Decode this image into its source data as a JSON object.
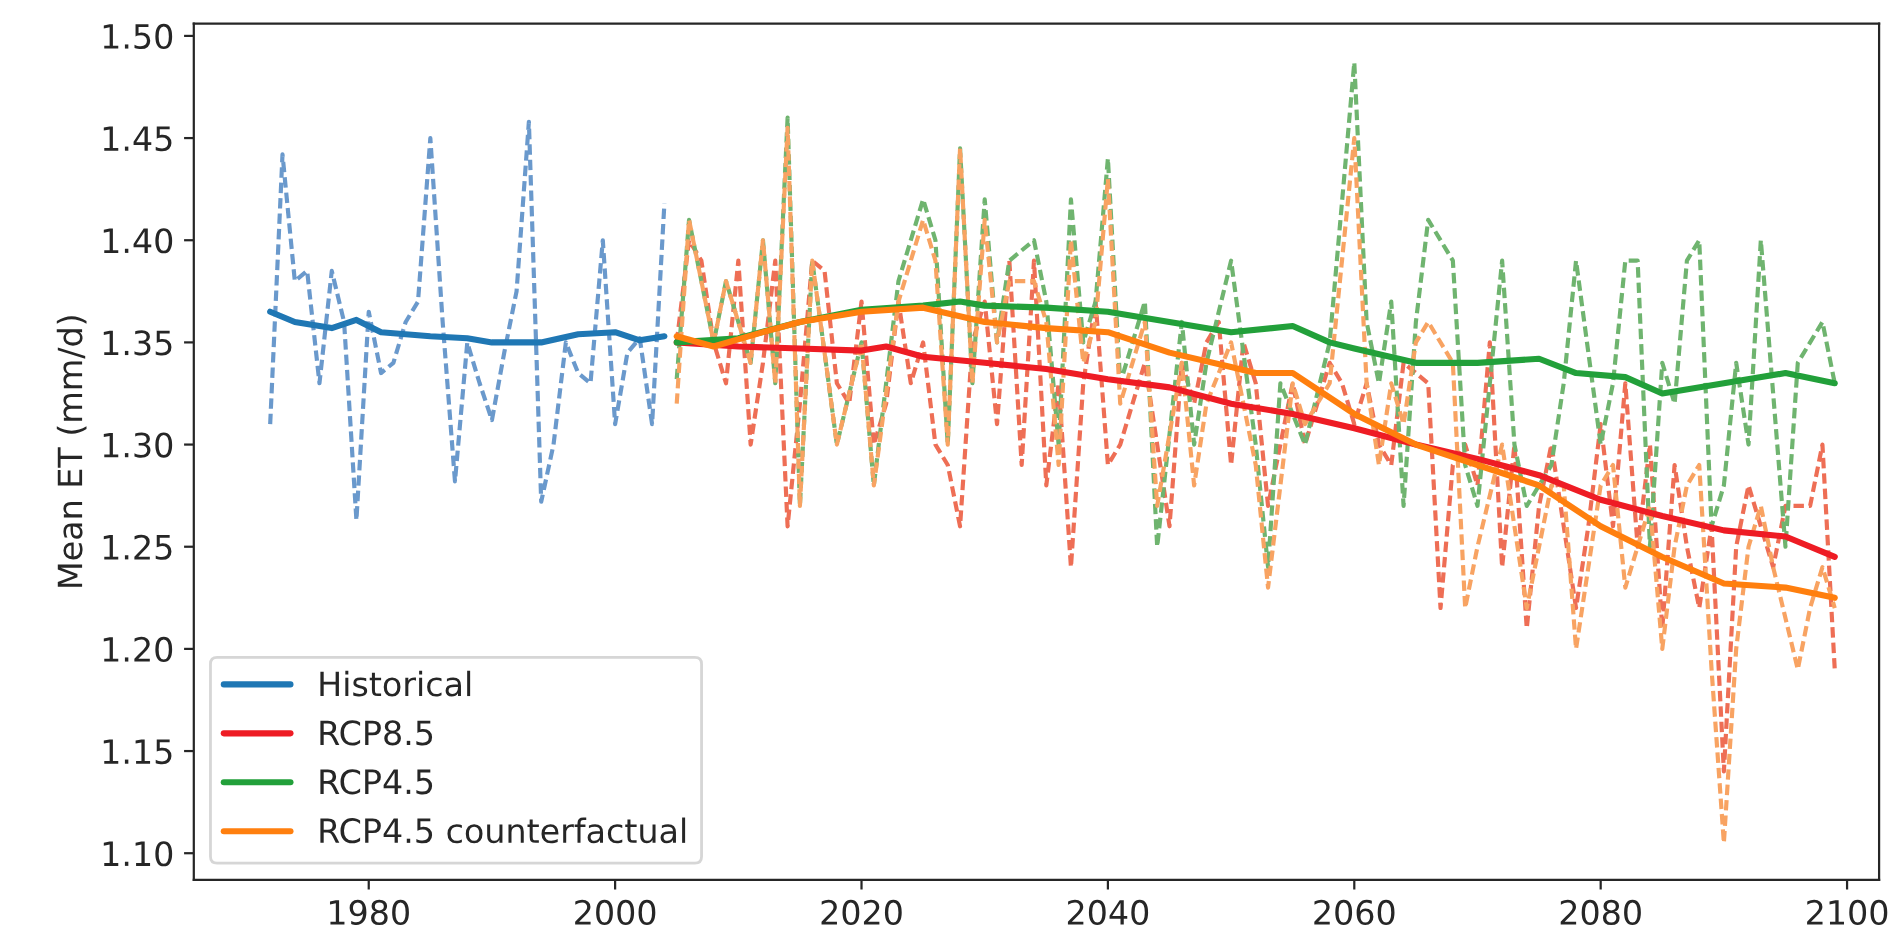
{
  "chart_data": {
    "type": "line",
    "ylabel": "Mean ET (mm/d)",
    "xlim": [
      1965.8,
      2102.6
    ],
    "ylim": [
      1.087,
      1.506
    ],
    "xticks": [
      1980,
      2000,
      2020,
      2040,
      2060,
      2080,
      2100
    ],
    "yticks": [
      {
        "value": 1.1,
        "label": "1.10"
      },
      {
        "value": 1.15,
        "label": "1.15"
      },
      {
        "value": 1.2,
        "label": "1.20"
      },
      {
        "value": 1.25,
        "label": "1.25"
      },
      {
        "value": 1.3,
        "label": "1.30"
      },
      {
        "value": 1.35,
        "label": "1.35"
      },
      {
        "value": 1.4,
        "label": "1.40"
      },
      {
        "value": 1.45,
        "label": "1.45"
      },
      {
        "value": 1.5,
        "label": "1.50"
      }
    ],
    "grid": false,
    "legend": "lower left",
    "series": [
      {
        "color": "#6a99cc",
        "line_style": "dashed",
        "x": [
          1972,
          1973,
          1974,
          1975,
          1976,
          1977,
          1978,
          1979,
          1980,
          1981,
          1982,
          1983,
          1984,
          1985,
          1986,
          1987,
          1988,
          1989,
          1990,
          1991,
          1992,
          1993,
          1994,
          1995,
          1996,
          1997,
          1998,
          1999,
          2000,
          2001,
          2002,
          2003,
          2004
        ],
        "values": [
          1.31,
          1.442,
          1.38,
          1.385,
          1.33,
          1.385,
          1.36,
          1.263,
          1.365,
          1.335,
          1.34,
          1.36,
          1.37,
          1.45,
          1.36,
          1.282,
          1.35,
          1.33,
          1.312,
          1.345,
          1.375,
          1.458,
          1.272,
          1.3,
          1.35,
          1.335,
          1.33,
          1.4,
          1.31,
          1.345,
          1.352,
          1.31,
          1.418
        ]
      },
      {
        "color": "#ee6e55",
        "line_style": "dashed",
        "x": [
          2005,
          2006,
          2007,
          2008,
          2009,
          2010,
          2011,
          2012,
          2013,
          2014,
          2015,
          2016,
          2017,
          2018,
          2019,
          2020,
          2021,
          2022,
          2023,
          2024,
          2025,
          2026,
          2027,
          2028,
          2029,
          2030,
          2031,
          2032,
          2033,
          2034,
          2035,
          2036,
          2037,
          2038,
          2039,
          2040,
          2041,
          2043,
          2044,
          2045,
          2046,
          2047,
          2048,
          2049,
          2050,
          2051,
          2052,
          2053,
          2055,
          2056,
          2057,
          2058,
          2059,
          2060,
          2061,
          2062,
          2063,
          2064,
          2066,
          2067,
          2068,
          2069,
          2070,
          2071,
          2072,
          2073,
          2074,
          2075,
          2076,
          2077,
          2078,
          2079,
          2080,
          2081,
          2082,
          2083,
          2084,
          2085,
          2086,
          2087,
          2088,
          2089,
          2090,
          2091,
          2092,
          2094,
          2095,
          2097,
          2098,
          2099
        ],
        "values": [
          1.35,
          1.4,
          1.39,
          1.35,
          1.33,
          1.39,
          1.3,
          1.34,
          1.39,
          1.26,
          1.32,
          1.39,
          1.385,
          1.33,
          1.32,
          1.37,
          1.3,
          1.32,
          1.37,
          1.33,
          1.35,
          1.3,
          1.29,
          1.26,
          1.35,
          1.37,
          1.31,
          1.39,
          1.29,
          1.39,
          1.28,
          1.33,
          1.24,
          1.33,
          1.37,
          1.29,
          1.3,
          1.34,
          1.3,
          1.26,
          1.34,
          1.32,
          1.35,
          1.36,
          1.29,
          1.35,
          1.33,
          1.27,
          1.33,
          1.3,
          1.32,
          1.34,
          1.33,
          1.31,
          1.33,
          1.3,
          1.29,
          1.34,
          1.33,
          1.22,
          1.29,
          1.3,
          1.28,
          1.35,
          1.24,
          1.3,
          1.21,
          1.27,
          1.3,
          1.26,
          1.22,
          1.26,
          1.31,
          1.26,
          1.33,
          1.25,
          1.3,
          1.21,
          1.29,
          1.25,
          1.22,
          1.26,
          1.14,
          1.25,
          1.28,
          1.24,
          1.27,
          1.27,
          1.3,
          1.19
        ]
      },
      {
        "color": "#6fb46f",
        "line_style": "dashed",
        "x": [
          2005,
          2006,
          2008,
          2009,
          2011,
          2012,
          2013,
          2014,
          2015,
          2016,
          2018,
          2020,
          2021,
          2023,
          2025,
          2026,
          2027,
          2028,
          2029,
          2030,
          2031,
          2032,
          2034,
          2035,
          2036,
          2037,
          2038,
          2039,
          2040,
          2041,
          2043,
          2044,
          2046,
          2047,
          2048,
          2050,
          2052,
          2053,
          2054,
          2056,
          2058,
          2060,
          2061,
          2062,
          2063,
          2064,
          2065,
          2066,
          2068,
          2069,
          2070,
          2072,
          2073,
          2074,
          2076,
          2077,
          2078,
          2080,
          2081,
          2082,
          2083,
          2084,
          2085,
          2086,
          2087,
          2088,
          2089,
          2090,
          2091,
          2092,
          2093,
          2095,
          2096,
          2097,
          2098,
          2099
        ],
        "values": [
          1.332,
          1.41,
          1.35,
          1.38,
          1.34,
          1.4,
          1.33,
          1.46,
          1.27,
          1.39,
          1.3,
          1.35,
          1.28,
          1.38,
          1.42,
          1.4,
          1.3,
          1.445,
          1.33,
          1.42,
          1.35,
          1.39,
          1.4,
          1.37,
          1.3,
          1.42,
          1.35,
          1.37,
          1.44,
          1.33,
          1.37,
          1.25,
          1.36,
          1.3,
          1.34,
          1.39,
          1.3,
          1.24,
          1.33,
          1.3,
          1.35,
          1.487,
          1.36,
          1.33,
          1.37,
          1.27,
          1.36,
          1.41,
          1.39,
          1.29,
          1.27,
          1.39,
          1.3,
          1.27,
          1.29,
          1.33,
          1.39,
          1.3,
          1.33,
          1.39,
          1.39,
          1.25,
          1.34,
          1.32,
          1.39,
          1.4,
          1.26,
          1.28,
          1.34,
          1.3,
          1.4,
          1.25,
          1.34,
          1.35,
          1.36,
          1.33
        ]
      },
      {
        "color": "#f8a362",
        "line_style": "dashed",
        "x": [
          2005,
          2006,
          2008,
          2009,
          2011,
          2012,
          2013,
          2014,
          2015,
          2016,
          2018,
          2020,
          2021,
          2023,
          2025,
          2026,
          2027,
          2028,
          2029,
          2030,
          2031,
          2032,
          2034,
          2035,
          2036,
          2037,
          2038,
          2039,
          2040,
          2041,
          2043,
          2044,
          2046,
          2047,
          2048,
          2050,
          2052,
          2053,
          2055,
          2056,
          2058,
          2060,
          2061,
          2062,
          2063,
          2064,
          2065,
          2066,
          2068,
          2069,
          2070,
          2072,
          2073,
          2074,
          2076,
          2077,
          2078,
          2080,
          2081,
          2082,
          2084,
          2085,
          2086,
          2087,
          2088,
          2089,
          2090,
          2091,
          2092,
          2093,
          2094,
          2096,
          2097,
          2098,
          2099
        ],
        "values": [
          1.32,
          1.41,
          1.35,
          1.38,
          1.34,
          1.4,
          1.33,
          1.455,
          1.27,
          1.39,
          1.3,
          1.35,
          1.28,
          1.37,
          1.41,
          1.39,
          1.3,
          1.445,
          1.33,
          1.41,
          1.35,
          1.38,
          1.38,
          1.36,
          1.29,
          1.4,
          1.34,
          1.36,
          1.43,
          1.32,
          1.36,
          1.27,
          1.34,
          1.28,
          1.32,
          1.35,
          1.29,
          1.23,
          1.33,
          1.31,
          1.33,
          1.45,
          1.33,
          1.29,
          1.33,
          1.31,
          1.35,
          1.36,
          1.34,
          1.22,
          1.25,
          1.3,
          1.26,
          1.22,
          1.28,
          1.28,
          1.2,
          1.28,
          1.29,
          1.23,
          1.27,
          1.2,
          1.25,
          1.28,
          1.29,
          1.19,
          1.105,
          1.2,
          1.25,
          1.27,
          1.24,
          1.19,
          1.22,
          1.24,
          1.22
        ]
      },
      {
        "name": "Historical",
        "color": "#1f77b4",
        "line_style": "solid",
        "x": [
          1972,
          1974,
          1977,
          1979,
          1981,
          1985,
          1988,
          1990,
          1994,
          1997,
          2000,
          2002,
          2004
        ],
        "values": [
          1.365,
          1.36,
          1.357,
          1.361,
          1.355,
          1.353,
          1.352,
          1.35,
          1.35,
          1.354,
          1.355,
          1.351,
          1.353
        ]
      },
      {
        "name": "RCP8.5",
        "color": "#ee1c24",
        "line_style": "solid",
        "x": [
          2005,
          2010,
          2015,
          2020,
          2022,
          2025,
          2030,
          2035,
          2040,
          2045,
          2050,
          2055,
          2060,
          2065,
          2070,
          2075,
          2080,
          2085,
          2090,
          2095,
          2099
        ],
        "values": [
          1.35,
          1.348,
          1.347,
          1.346,
          1.348,
          1.343,
          1.34,
          1.337,
          1.332,
          1.328,
          1.32,
          1.315,
          1.308,
          1.3,
          1.293,
          1.285,
          1.273,
          1.265,
          1.258,
          1.255,
          1.245
        ]
      },
      {
        "name": "RCP4.5",
        "color": "#22a03a",
        "line_style": "solid",
        "x": [
          2005,
          2010,
          2015,
          2020,
          2025,
          2028,
          2030,
          2035,
          2040,
          2045,
          2050,
          2055,
          2058,
          2060,
          2065,
          2070,
          2075,
          2078,
          2082,
          2085,
          2090,
          2095,
          2099
        ],
        "values": [
          1.35,
          1.352,
          1.36,
          1.366,
          1.368,
          1.37,
          1.368,
          1.367,
          1.365,
          1.36,
          1.355,
          1.358,
          1.35,
          1.347,
          1.34,
          1.34,
          1.342,
          1.335,
          1.333,
          1.325,
          1.33,
          1.335,
          1.33
        ]
      },
      {
        "name": "RCP4.5 counterfactual",
        "color": "#ff7f0e",
        "line_style": "solid",
        "x": [
          2005,
          2008,
          2012,
          2015,
          2020,
          2025,
          2030,
          2035,
          2040,
          2045,
          2050,
          2052,
          2055,
          2060,
          2065,
          2070,
          2075,
          2080,
          2085,
          2090,
          2095,
          2099
        ],
        "values": [
          1.353,
          1.348,
          1.355,
          1.36,
          1.365,
          1.367,
          1.36,
          1.357,
          1.355,
          1.345,
          1.338,
          1.335,
          1.335,
          1.315,
          1.3,
          1.29,
          1.28,
          1.26,
          1.245,
          1.232,
          1.23,
          1.225
        ]
      }
    ]
  }
}
